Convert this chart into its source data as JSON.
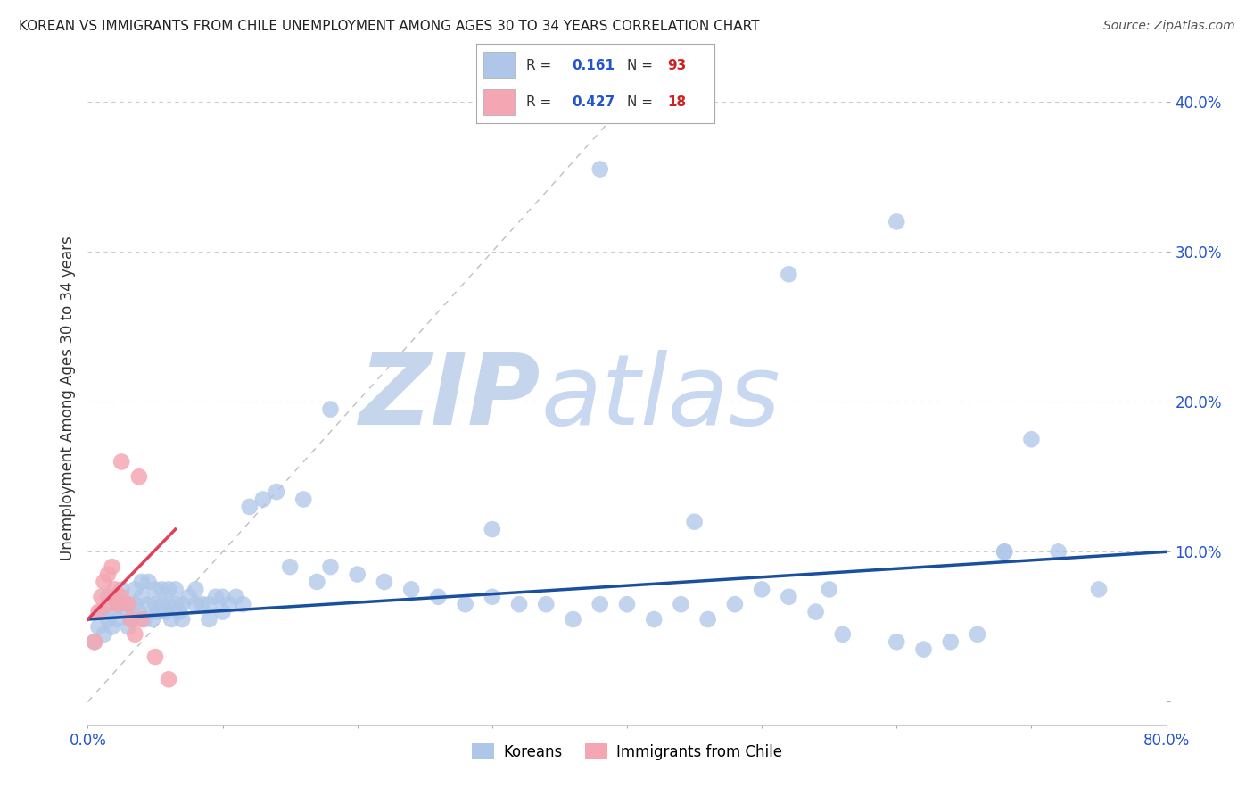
{
  "title": "KOREAN VS IMMIGRANTS FROM CHILE UNEMPLOYMENT AMONG AGES 30 TO 34 YEARS CORRELATION CHART",
  "source": "Source: ZipAtlas.com",
  "ylabel": "Unemployment Among Ages 30 to 34 years",
  "xlim": [
    0.0,
    0.8
  ],
  "ylim": [
    -0.015,
    0.42
  ],
  "xticks": [
    0.0,
    0.1,
    0.2,
    0.3,
    0.4,
    0.5,
    0.6,
    0.7,
    0.8
  ],
  "xticklabels": [
    "0.0%",
    "",
    "",
    "",
    "",
    "",
    "",
    "",
    "80.0%"
  ],
  "yticks": [
    0.0,
    0.1,
    0.2,
    0.3,
    0.4
  ],
  "yticklabels": [
    "",
    "10.0%",
    "20.0%",
    "30.0%",
    "40.0%"
  ],
  "korean_R": 0.161,
  "korean_N": 93,
  "chile_R": 0.427,
  "chile_N": 18,
  "korean_color": "#aec6e8",
  "chile_color": "#f4a7b3",
  "korean_line_color": "#1a4fa0",
  "chile_line_color": "#e0405a",
  "watermark_zip_color": "#c5d5eb",
  "watermark_atlas_color": "#c8d8f0",
  "bg_color": "#ffffff",
  "grid_color": "#cccccc",
  "korean_x": [
    0.005,
    0.008,
    0.01,
    0.012,
    0.015,
    0.015,
    0.018,
    0.02,
    0.02,
    0.022,
    0.025,
    0.025,
    0.028,
    0.03,
    0.03,
    0.032,
    0.035,
    0.035,
    0.038,
    0.04,
    0.04,
    0.042,
    0.045,
    0.045,
    0.048,
    0.05,
    0.05,
    0.052,
    0.055,
    0.055,
    0.058,
    0.06,
    0.06,
    0.062,
    0.065,
    0.065,
    0.068,
    0.07,
    0.07,
    0.075,
    0.08,
    0.08,
    0.085,
    0.09,
    0.09,
    0.095,
    0.1,
    0.1,
    0.105,
    0.11,
    0.115,
    0.12,
    0.13,
    0.14,
    0.15,
    0.16,
    0.17,
    0.18,
    0.2,
    0.22,
    0.24,
    0.26,
    0.28,
    0.3,
    0.32,
    0.34,
    0.36,
    0.38,
    0.4,
    0.42,
    0.44,
    0.46,
    0.48,
    0.5,
    0.52,
    0.54,
    0.56,
    0.6,
    0.62,
    0.64,
    0.66,
    0.68,
    0.7,
    0.38,
    0.52,
    0.6,
    0.68,
    0.72,
    0.75,
    0.18,
    0.3,
    0.45,
    0.55
  ],
  "korean_y": [
    0.04,
    0.05,
    0.06,
    0.045,
    0.055,
    0.07,
    0.05,
    0.06,
    0.07,
    0.055,
    0.065,
    0.075,
    0.06,
    0.05,
    0.065,
    0.055,
    0.065,
    0.075,
    0.06,
    0.07,
    0.08,
    0.055,
    0.065,
    0.08,
    0.055,
    0.065,
    0.075,
    0.06,
    0.065,
    0.075,
    0.06,
    0.065,
    0.075,
    0.055,
    0.065,
    0.075,
    0.06,
    0.055,
    0.065,
    0.07,
    0.065,
    0.075,
    0.065,
    0.055,
    0.065,
    0.07,
    0.06,
    0.07,
    0.065,
    0.07,
    0.065,
    0.13,
    0.135,
    0.14,
    0.09,
    0.135,
    0.08,
    0.09,
    0.085,
    0.08,
    0.075,
    0.07,
    0.065,
    0.07,
    0.065,
    0.065,
    0.055,
    0.065,
    0.065,
    0.055,
    0.065,
    0.055,
    0.065,
    0.075,
    0.07,
    0.06,
    0.045,
    0.04,
    0.035,
    0.04,
    0.045,
    0.1,
    0.175,
    0.355,
    0.285,
    0.32,
    0.1,
    0.1,
    0.075,
    0.195,
    0.115,
    0.12,
    0.075
  ],
  "chile_x": [
    0.005,
    0.008,
    0.01,
    0.012,
    0.015,
    0.015,
    0.018,
    0.02,
    0.022,
    0.025,
    0.025,
    0.03,
    0.032,
    0.035,
    0.038,
    0.04,
    0.05,
    0.06
  ],
  "chile_y": [
    0.04,
    0.06,
    0.07,
    0.08,
    0.065,
    0.085,
    0.09,
    0.075,
    0.065,
    0.07,
    0.16,
    0.065,
    0.055,
    0.045,
    0.15,
    0.055,
    0.03,
    0.015
  ],
  "korean_line_x": [
    0.0,
    0.8
  ],
  "korean_line_y": [
    0.055,
    0.1
  ],
  "chile_line_x": [
    0.0,
    0.065
  ],
  "chile_line_y": [
    0.055,
    0.115
  ],
  "diag_line_x": [
    0.0,
    0.42
  ],
  "diag_line_y": [
    0.0,
    0.42
  ]
}
